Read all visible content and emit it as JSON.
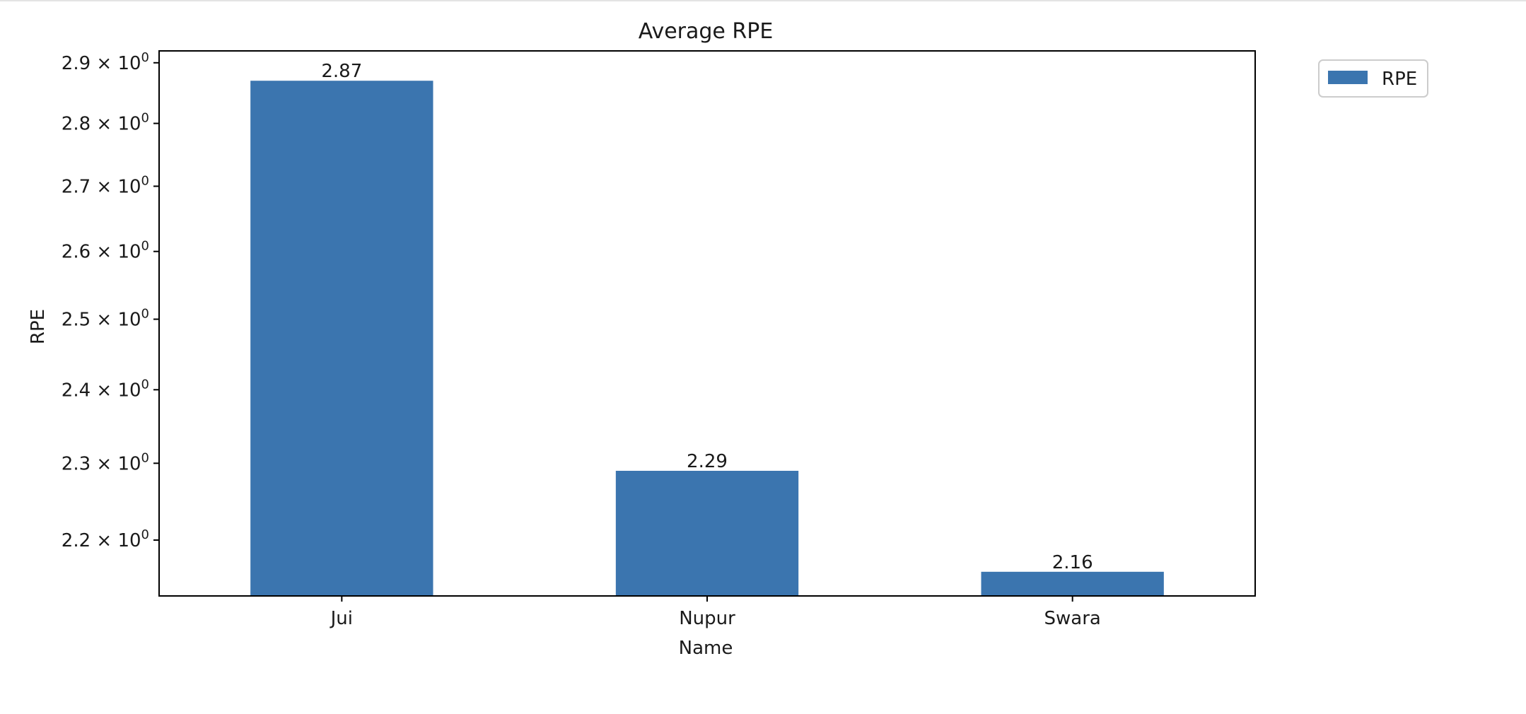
{
  "chart_data": {
    "type": "bar",
    "title": "Average RPE",
    "xlabel": "Name",
    "ylabel": "RPE",
    "categories": [
      "Jui",
      "Nupur",
      "Swara"
    ],
    "series": [
      {
        "name": "RPE",
        "values": [
          2.87,
          2.29,
          2.16
        ],
        "labels": [
          "2.87",
          "2.29",
          "2.16"
        ]
      }
    ],
    "yscale": "log",
    "ylim": [
      2.13,
      2.92
    ],
    "yticks": [
      2.2,
      2.3,
      2.4,
      2.5,
      2.6,
      2.7,
      2.8,
      2.9
    ],
    "ytick_labels": [
      {
        "mantissa": "2.2",
        "base": "10",
        "exp": "0"
      },
      {
        "mantissa": "2.3",
        "base": "10",
        "exp": "0"
      },
      {
        "mantissa": "2.4",
        "base": "10",
        "exp": "0"
      },
      {
        "mantissa": "2.5",
        "base": "10",
        "exp": "0"
      },
      {
        "mantissa": "2.6",
        "base": "10",
        "exp": "0"
      },
      {
        "mantissa": "2.7",
        "base": "10",
        "exp": "0"
      },
      {
        "mantissa": "2.8",
        "base": "10",
        "exp": "0"
      },
      {
        "mantissa": "2.9",
        "base": "10",
        "exp": "0"
      }
    ],
    "bar_color": "#3b75af",
    "grid": false,
    "legend": {
      "position": "outside-top-right",
      "entries": [
        "RPE"
      ]
    }
  }
}
